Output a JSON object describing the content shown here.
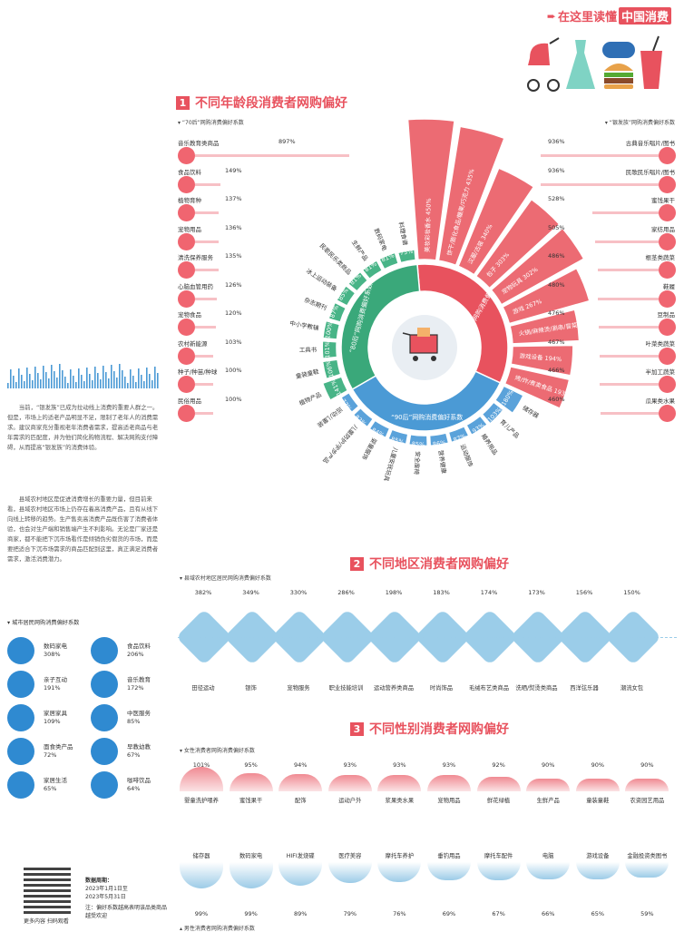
{
  "header": {
    "brand": "在这里读懂",
    "brand_highlight": "中国消费"
  },
  "colors": {
    "red": "#e8525e",
    "green": "#3aa87a",
    "blue": "#4b9ad5",
    "light_red": "#f7c0c5"
  },
  "sections": {
    "s1": {
      "num": "1",
      "title": "不同年龄段消费者网购偏好"
    },
    "s2": {
      "num": "2",
      "title": "不同地区消费者网购偏好"
    },
    "s3": {
      "num": "3",
      "title": "不同性别消费者网购偏好"
    }
  },
  "left_intro": {
    "p1": "当前，“银发族”已成为拉动线上消费的重要人群之一。但是，市场上的适老产品明显不足，限制了老年人的消费需求。建议商家充分重视老年消费者需求，提高适老商品与老年需求的匹配度，并为他们简化购物流程、解决网购支付障碍，从而提高“银发族”的消费体验。",
    "p2": "县域农村地区是促进消费增长的重要力量，但目前来看，县域农村地区市场上仍存在着高消费产品，且有从线下向线上转移的趋势。生产售卖高消费产品既伤害了消费者体验，也会对生产端和销售端产生不利影响。无论是厂家还是商家，都不能把下沉市场看作是倾销伪劣假货的市场，而是要把适合下沉市场需求的商品匹配到这里，真正满足消费者需求，激活消费潜力。"
  },
  "city_title": "城市居民网购消费偏好系数",
  "city_items": [
    {
      "label": "数码家电",
      "value": "308%"
    },
    {
      "label": "食品饮料",
      "value": "206%"
    },
    {
      "label": "亲子互动",
      "value": "191%"
    },
    {
      "label": "音乐教育",
      "value": "172%"
    },
    {
      "label": "家居家具",
      "value": "109%"
    },
    {
      "label": "中医服务",
      "value": "85%"
    },
    {
      "label": "面食类产品",
      "value": "72%"
    },
    {
      "label": "早教幼教",
      "value": "67%"
    },
    {
      "label": "家居生活",
      "value": "65%"
    },
    {
      "label": "咖啡饮品",
      "value": "64%"
    }
  ],
  "footer": {
    "qr_caption": "更多内容 扫码观看",
    "period_label": "数据周期：",
    "period_from": "2023年1月1日至",
    "period_to": "2023年5月31日",
    "note": "注：偏好系数越高表明该品类商品越受欢迎"
  },
  "chart_data": [
    {
      "type": "bar",
      "title": "“70后”网购消费偏好系数",
      "categories": [
        "音乐教育类商品",
        "食品饮料",
        "植物育种",
        "宠物用品",
        "清洗保养服务",
        "心脑血管用药",
        "宠物食品",
        "农村新能源",
        "种子/种苗/种球",
        "民俗用品"
      ],
      "values": [
        897,
        149,
        137,
        136,
        135,
        126,
        120,
        103,
        100,
        100
      ],
      "labels": [
        "897%",
        "149%",
        "137%",
        "136%",
        "135%",
        "126%",
        "120%",
        "103%",
        "100%",
        "100%"
      ]
    },
    {
      "type": "bar",
      "title": "“银发族”网购消费偏好系数",
      "categories": [
        "古典音乐唱片/图书",
        "民歌民乐唱片/图书",
        "蜜饯果干",
        "家纺用品",
        "根茎类蔬菜",
        "鞋履",
        "豆制品",
        "叶菜类蔬菜",
        "半加工蔬菜",
        "瓜果类水果"
      ],
      "values": [
        936,
        936,
        528,
        505,
        486,
        480,
        476,
        467,
        466,
        460
      ],
      "labels": [
        "936%",
        "936%",
        "528%",
        "505%",
        "486%",
        "480%",
        "476%",
        "467%",
        "466%",
        "460%"
      ]
    },
    {
      "type": "bar",
      "title": "“00后”网购消费偏好系数",
      "categories": [
        "美妆彩妆香水",
        "饼干/膨化食品/糖果/巧克力",
        "汉服/古装",
        "包子",
        "宠物玩具",
        "游戏",
        "火锅/麻辣烫/涮串/冒菜",
        "游戏设备",
        "烤/炸/煮类食品"
      ],
      "values": [
        450,
        435,
        340,
        303,
        302,
        267,
        214,
        194,
        193
      ],
      "labels": [
        "450%",
        "435%",
        "340%",
        "303%",
        "302%",
        "267%",
        "214%",
        "194%",
        "193%"
      ]
    },
    {
      "type": "bar",
      "title": "“80后”网购消费偏好系数",
      "categories": [
        "料理食谱",
        "数码家电",
        "生鲜产品",
        "民歌民乐类商品",
        "冰上运动装备",
        "杂志期刊",
        "中小学教辅",
        "工具书",
        "童装童鞋",
        "植物产品"
      ],
      "values": [
        75,
        81,
        81,
        81,
        85,
        87,
        100,
        101,
        106,
        141
      ],
      "labels": [
        "75%",
        "81%",
        "81%",
        "81%",
        "85%",
        "87%",
        "100%",
        "101%",
        "106%",
        "141%"
      ]
    },
    {
      "type": "bar",
      "title": "“90后”网购消费偏好系数",
      "categories": [
        "储存器",
        "育儿产品",
        "婚养用品",
        "运动服饰",
        "营养健康",
        "安全座椅",
        "儿童安抚玩具",
        "婴童服饰",
        "儿童防护/学步产品",
        "运动儿童装"
      ],
      "values": [
        180,
        103,
        93,
        87,
        86,
        85,
        85,
        84,
        82,
        77
      ],
      "labels": [
        "180%",
        "103%",
        "93%",
        "87%",
        "86%",
        "85%",
        "85%",
        "84%",
        "82%",
        "77%"
      ]
    },
    {
      "type": "bar",
      "title": "县域农村地区居民网购消费偏好系数",
      "categories": [
        "田径运动",
        "银饰",
        "宠物服务",
        "职业技能培训",
        "运动营养类商品",
        "时尚饰品",
        "毛绒布艺类商品",
        "洗晒/熨烫类商品",
        "西洋弦乐器",
        "潮流女包"
      ],
      "values": [
        382,
        349,
        330,
        286,
        198,
        183,
        174,
        173,
        156,
        150
      ],
      "labels": [
        "382%",
        "349%",
        "330%",
        "286%",
        "198%",
        "183%",
        "174%",
        "173%",
        "156%",
        "150%"
      ]
    },
    {
      "type": "bar",
      "title": "女性消费者网购消费偏好系数",
      "categories": [
        "婴童洗护喂养",
        "蜜饯果干",
        "配饰",
        "运动户外",
        "浆果类水果",
        "宠物用品",
        "鲜花绿植",
        "生鲜产品",
        "童装童鞋",
        "农资园艺用品"
      ],
      "values": [
        101,
        95,
        94,
        93,
        93,
        93,
        92,
        90,
        90,
        90
      ],
      "labels": [
        "101%",
        "95%",
        "94%",
        "93%",
        "93%",
        "93%",
        "92%",
        "90%",
        "90%",
        "90%"
      ]
    },
    {
      "type": "bar",
      "title": "男性消费者网购消费偏好系数",
      "categories": [
        "储存器",
        "数码家电",
        "HIFI发烧碟",
        "医疗美容",
        "摩托车养护",
        "垂钓用品",
        "摩托车配件",
        "电脑",
        "游戏设备",
        "金融投资类图书"
      ],
      "values": [
        99,
        99,
        89,
        79,
        76,
        69,
        67,
        66,
        65,
        59
      ],
      "labels": [
        "99%",
        "99%",
        "89%",
        "79%",
        "76%",
        "69%",
        "67%",
        "66%",
        "65%",
        "59%"
      ]
    }
  ]
}
